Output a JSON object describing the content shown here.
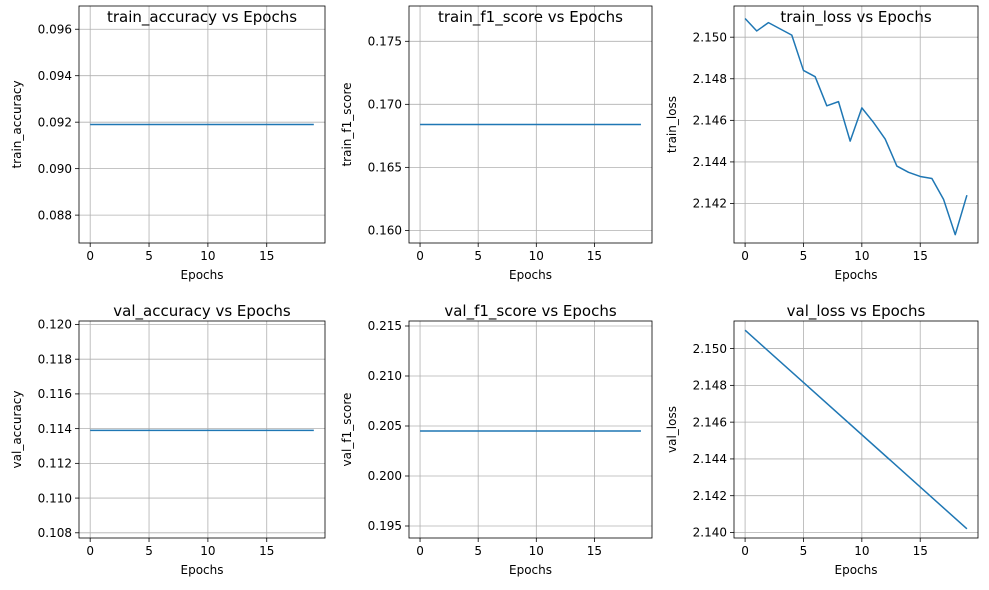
{
  "chart_data": [
    {
      "type": "line",
      "title": "train_accuracy vs Epochs",
      "xlabel": "Epochs",
      "ylabel": "train_accuracy",
      "xlim": [
        -0.95,
        19.95
      ],
      "ylim": [
        0.0868,
        0.097
      ],
      "xticks": [
        0,
        5,
        10,
        15
      ],
      "xtick_labels": [
        "0",
        "5",
        "10",
        "15"
      ],
      "yticks": [
        0.088,
        0.09,
        0.092,
        0.094,
        0.096
      ],
      "ytick_labels": [
        "0.088",
        "0.090",
        "0.092",
        "0.094",
        "0.096"
      ],
      "grid": true,
      "series": [
        {
          "color": "#1f77b4",
          "x": [
            0,
            1,
            2,
            3,
            4,
            5,
            6,
            7,
            8,
            9,
            10,
            11,
            12,
            13,
            14,
            15,
            16,
            17,
            18,
            19
          ],
          "values": [
            0.0919,
            0.0919,
            0.0919,
            0.0919,
            0.0919,
            0.0919,
            0.0919,
            0.0919,
            0.0919,
            0.0919,
            0.0919,
            0.0919,
            0.0919,
            0.0919,
            0.0919,
            0.0919,
            0.0919,
            0.0919,
            0.0919,
            0.0919
          ]
        }
      ]
    },
    {
      "type": "line",
      "title": "train_f1_score vs Epochs",
      "xlabel": "Epochs",
      "ylabel": "train_f1_score",
      "xlim": [
        -0.95,
        19.95
      ],
      "ylim": [
        0.159,
        0.1778
      ],
      "xticks": [
        0,
        5,
        10,
        15
      ],
      "xtick_labels": [
        "0",
        "5",
        "10",
        "15"
      ],
      "yticks": [
        0.16,
        0.165,
        0.17,
        0.175
      ],
      "ytick_labels": [
        "0.160",
        "0.165",
        "0.170",
        "0.175"
      ],
      "grid": true,
      "series": [
        {
          "color": "#1f77b4",
          "x": [
            0,
            1,
            2,
            3,
            4,
            5,
            6,
            7,
            8,
            9,
            10,
            11,
            12,
            13,
            14,
            15,
            16,
            17,
            18,
            19
          ],
          "values": [
            0.1684,
            0.1684,
            0.1684,
            0.1684,
            0.1684,
            0.1684,
            0.1684,
            0.1684,
            0.1684,
            0.1684,
            0.1684,
            0.1684,
            0.1684,
            0.1684,
            0.1684,
            0.1684,
            0.1684,
            0.1684,
            0.1684,
            0.1684
          ]
        }
      ]
    },
    {
      "type": "line",
      "title": "train_loss vs Epochs",
      "xlabel": "Epochs",
      "ylabel": "train_loss",
      "xlim": [
        -0.95,
        19.95
      ],
      "ylim": [
        2.1401,
        2.1515
      ],
      "xticks": [
        0,
        5,
        10,
        15
      ],
      "xtick_labels": [
        "0",
        "5",
        "10",
        "15"
      ],
      "yticks": [
        2.142,
        2.144,
        2.146,
        2.148,
        2.15
      ],
      "ytick_labels": [
        "2.142",
        "2.144",
        "2.146",
        "2.148",
        "2.150"
      ],
      "grid": true,
      "series": [
        {
          "color": "#1f77b4",
          "x": [
            0,
            1,
            2,
            3,
            4,
            5,
            6,
            7,
            8,
            9,
            10,
            11,
            12,
            13,
            14,
            15,
            16,
            17,
            18,
            19
          ],
          "values": [
            2.1509,
            2.1503,
            2.1507,
            2.1504,
            2.1501,
            2.1484,
            2.1481,
            2.1467,
            2.1469,
            2.145,
            2.1466,
            2.1459,
            2.1451,
            2.1438,
            2.1435,
            2.1433,
            2.1432,
            2.1422,
            2.1405,
            2.1424
          ]
        }
      ]
    },
    {
      "type": "line",
      "title": "val_accuracy vs Epochs",
      "xlabel": "Epochs",
      "ylabel": "val_accuracy",
      "xlim": [
        -0.95,
        19.95
      ],
      "ylim": [
        0.1077,
        0.1202
      ],
      "xticks": [
        0,
        5,
        10,
        15
      ],
      "xtick_labels": [
        "0",
        "5",
        "10",
        "15"
      ],
      "yticks": [
        0.108,
        0.11,
        0.112,
        0.114,
        0.116,
        0.118,
        0.12
      ],
      "ytick_labels": [
        "0.108",
        "0.110",
        "0.112",
        "0.114",
        "0.116",
        "0.118",
        "0.120"
      ],
      "grid": true,
      "series": [
        {
          "color": "#1f77b4",
          "x": [
            0,
            1,
            2,
            3,
            4,
            5,
            6,
            7,
            8,
            9,
            10,
            11,
            12,
            13,
            14,
            15,
            16,
            17,
            18,
            19
          ],
          "values": [
            0.1139,
            0.1139,
            0.1139,
            0.1139,
            0.1139,
            0.1139,
            0.1139,
            0.1139,
            0.1139,
            0.1139,
            0.1139,
            0.1139,
            0.1139,
            0.1139,
            0.1139,
            0.1139,
            0.1139,
            0.1139,
            0.1139,
            0.1139
          ]
        }
      ]
    },
    {
      "type": "line",
      "title": "val_f1_score vs Epochs",
      "xlabel": "Epochs",
      "ylabel": "val_f1_score",
      "xlim": [
        -0.95,
        19.95
      ],
      "ylim": [
        0.1938,
        0.2155
      ],
      "xticks": [
        0,
        5,
        10,
        15
      ],
      "xtick_labels": [
        "0",
        "5",
        "10",
        "15"
      ],
      "yticks": [
        0.195,
        0.2,
        0.205,
        0.21,
        0.215
      ],
      "ytick_labels": [
        "0.195",
        "0.200",
        "0.205",
        "0.210",
        "0.215"
      ],
      "grid": true,
      "series": [
        {
          "color": "#1f77b4",
          "x": [
            0,
            1,
            2,
            3,
            4,
            5,
            6,
            7,
            8,
            9,
            10,
            11,
            12,
            13,
            14,
            15,
            16,
            17,
            18,
            19
          ],
          "values": [
            0.2045,
            0.2045,
            0.2045,
            0.2045,
            0.2045,
            0.2045,
            0.2045,
            0.2045,
            0.2045,
            0.2045,
            0.2045,
            0.2045,
            0.2045,
            0.2045,
            0.2045,
            0.2045,
            0.2045,
            0.2045,
            0.2045,
            0.2045
          ]
        }
      ]
    },
    {
      "type": "line",
      "title": "val_loss vs Epochs",
      "xlabel": "Epochs",
      "ylabel": "val_loss",
      "xlim": [
        -0.95,
        19.95
      ],
      "ylim": [
        2.1397,
        2.1515
      ],
      "xticks": [
        0,
        5,
        10,
        15
      ],
      "xtick_labels": [
        "0",
        "5",
        "10",
        "15"
      ],
      "yticks": [
        2.14,
        2.142,
        2.144,
        2.146,
        2.148,
        2.15
      ],
      "ytick_labels": [
        "2.140",
        "2.142",
        "2.144",
        "2.146",
        "2.148",
        "2.150"
      ],
      "grid": true,
      "series": [
        {
          "color": "#1f77b4",
          "x": [
            0,
            19
          ],
          "values": [
            2.151,
            2.1402
          ]
        }
      ]
    }
  ]
}
